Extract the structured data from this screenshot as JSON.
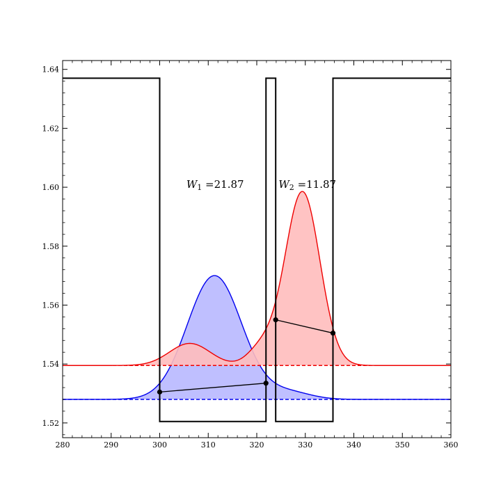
{
  "chart_data": {
    "type": "line",
    "title": "",
    "xlabel": "",
    "ylabel": "",
    "xlim": [
      280,
      360
    ],
    "ylim": [
      1.515,
      1.643
    ],
    "grid": false,
    "legend": "none",
    "xticks": [
      280,
      290,
      300,
      310,
      320,
      330,
      340,
      350,
      360
    ],
    "yticks": [
      1.52,
      1.54,
      1.56,
      1.58,
      1.6,
      1.62,
      1.64
    ],
    "ytick_labels": [
      "1.52",
      "1.54",
      "1.56",
      "1.58",
      "1.60",
      "1.62",
      "1.64"
    ],
    "colors": {
      "profile": "#000000",
      "red": "#ee0000",
      "red_fill": "#ffbcbc",
      "blue": "#0000ee",
      "blue_fill": "#b8b8ff"
    },
    "index_profile": {
      "x": [
        280,
        300,
        300,
        321.9,
        321.9,
        323.9,
        323.9,
        335.7,
        335.7,
        360
      ],
      "y": [
        1.637,
        1.637,
        1.5205,
        1.5205,
        1.637,
        1.637,
        1.5205,
        1.5205,
        1.637,
        1.637
      ]
    },
    "red_mode": {
      "baseline": 1.5395,
      "peaks": [
        {
          "center": 306.2,
          "height": 0.0075,
          "width": 4.2
        },
        {
          "center": 321.0,
          "height": 0.006,
          "width": 2.8
        },
        {
          "center": 329.4,
          "height": 0.059,
          "width": 3.6
        }
      ],
      "chord": {
        "x": [
          323.9,
          335.7
        ],
        "y": [
          1.555,
          1.5505
        ]
      }
    },
    "blue_mode": {
      "baseline": 1.528,
      "peaks": [
        {
          "center": 311.3,
          "height": 0.042,
          "width": 5.6
        },
        {
          "center": 326.5,
          "height": 0.0025,
          "width": 4.5
        }
      ],
      "chord": {
        "x": [
          300,
          321.9
        ],
        "y": [
          1.5305,
          1.5335
        ]
      }
    },
    "annotations": [
      {
        "sym": "W",
        "sub": "1",
        "text": " =21.87",
        "x": 305.5,
        "y": 1.601
      },
      {
        "sym": "W",
        "sub": "2",
        "text": " =11.87",
        "x": 324.5,
        "y": 1.601
      }
    ]
  }
}
